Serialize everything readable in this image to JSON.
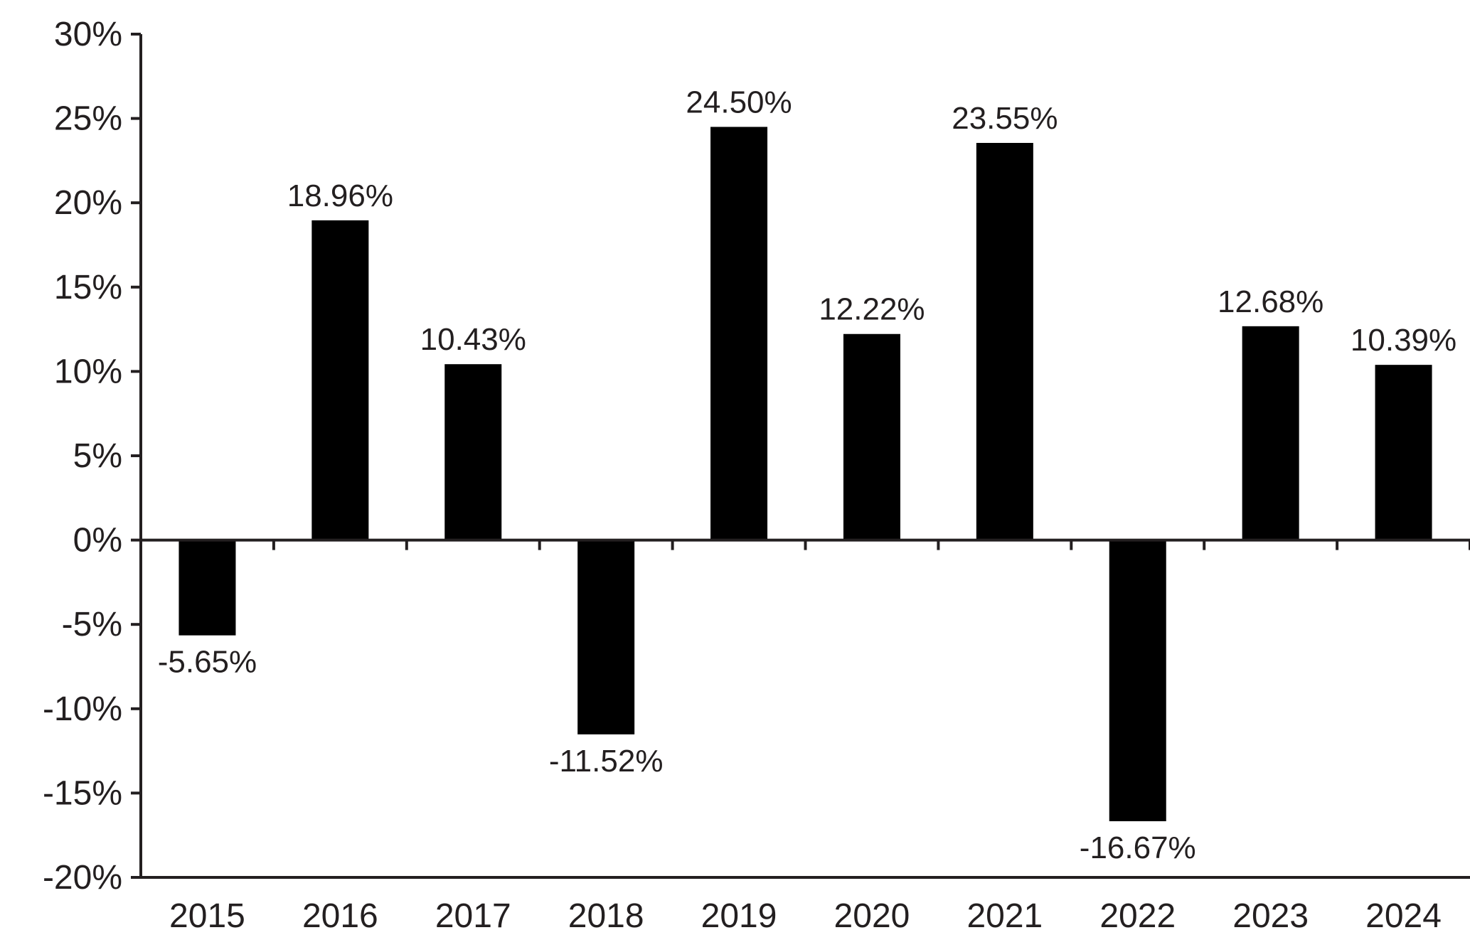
{
  "chart_data": {
    "type": "bar",
    "categories": [
      "2015",
      "2016",
      "2017",
      "2018",
      "2019",
      "2020",
      "2021",
      "2022",
      "2023",
      "2024"
    ],
    "values": [
      -5.65,
      18.96,
      10.43,
      -11.52,
      24.5,
      12.22,
      23.55,
      -16.67,
      12.68,
      10.39
    ],
    "data_labels": [
      "-5.65%",
      "18.96%",
      "10.43%",
      "-11.52%",
      "24.50%",
      "12.22%",
      "23.55%",
      "-16.67%",
      "12.68%",
      "10.39%"
    ],
    "title": "",
    "xlabel": "",
    "ylabel": "",
    "ylim": [
      -20,
      30
    ],
    "yticks": [
      30,
      25,
      20,
      15,
      10,
      5,
      0,
      -5,
      -10,
      -15,
      -20
    ],
    "ytick_labels": [
      "30%",
      "25%",
      "20%",
      "15%",
      "10%",
      "5%",
      "0%",
      "-5%",
      "-10%",
      "-15%",
      "-20%"
    ],
    "grid": false,
    "legend": "none",
    "bar_color": "#000000",
    "axis_color": "#231f20"
  }
}
